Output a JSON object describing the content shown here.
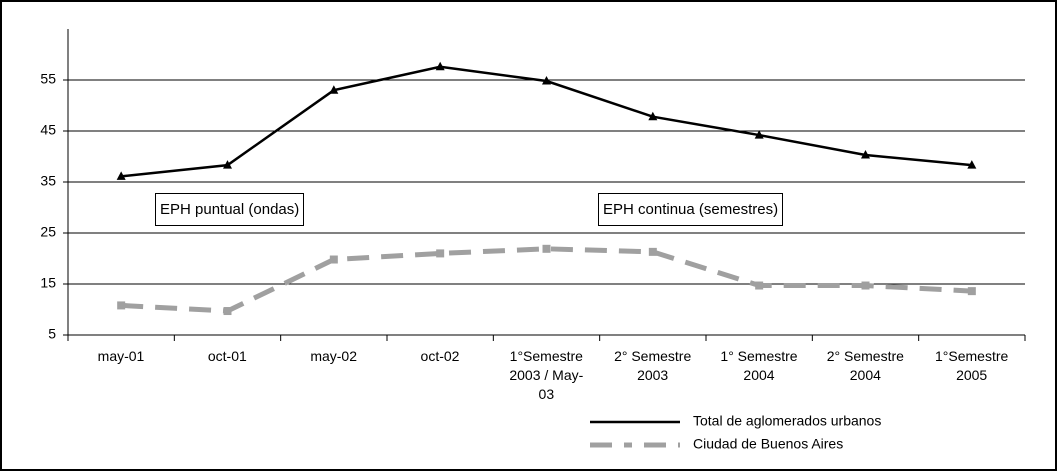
{
  "chart_data": {
    "type": "line",
    "categories": [
      "may-01",
      "oct-01",
      "may-02",
      "oct-02",
      "1°Semestre\n2003 / May-\n03",
      "2° Semestre\n2003",
      "1° Semestre\n2004",
      "2° Semestre\n2004",
      "1°Semestre\n2005"
    ],
    "series": [
      {
        "name": "Total de aglomerados urbanos",
        "color": "#000000",
        "marker": "triangle",
        "style": "solid",
        "values": [
          36.1,
          38.3,
          53,
          57.6,
          54.8,
          47.8,
          44.2,
          40.3,
          38.3
        ]
      },
      {
        "name": "Ciudad de Buenos Aires",
        "color": "#a0a0a0",
        "marker": "square",
        "style": "dashed",
        "values": [
          10.8,
          9.7,
          19.8,
          21,
          21.9,
          21.3,
          14.7,
          14.7,
          13.6
        ]
      }
    ],
    "annotations": [
      "EPH puntual (ondas)",
      "EPH continua (semestres)"
    ],
    "ylim": [
      5,
      65
    ],
    "yticks": [
      5,
      15,
      25,
      35,
      45,
      55
    ],
    "grid": true,
    "legend": "bottom-right"
  }
}
